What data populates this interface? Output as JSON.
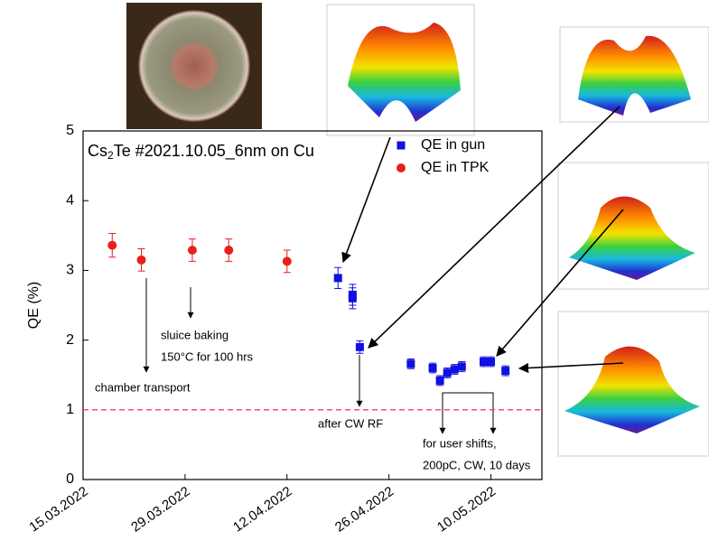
{
  "chart_data": {
    "type": "scatter",
    "title_parts": [
      "Cs",
      "2",
      "Te #2021.10.05_6nm on Cu"
    ],
    "y_label": "QE (%)",
    "xlim": [
      "2022-03-15",
      "2022-05-17"
    ],
    "xticks": [
      {
        "value": "2022-03-15",
        "label": "15.03.2022"
      },
      {
        "value": "2022-03-29",
        "label": "29.03.2022"
      },
      {
        "value": "2022-04-12",
        "label": "12.04.2022"
      },
      {
        "value": "2022-04-26",
        "label": "26.04.2022"
      },
      {
        "value": "2022-05-10",
        "label": "10.05.2022"
      }
    ],
    "ylim": [
      0,
      5
    ],
    "yticks": [
      0,
      1,
      2,
      3,
      4,
      5
    ],
    "legend": "upper right",
    "series": [
      {
        "name": "QE in gun",
        "color": "#1010e0",
        "marker": "square",
        "x": [
          "2022-04-19",
          "2022-04-21",
          "2022-04-21",
          "2022-04-22",
          "2022-04-29",
          "2022-05-02",
          "2022-05-03",
          "2022-05-04",
          "2022-05-05",
          "2022-05-06",
          "2022-05-09",
          "2022-05-10",
          "2022-05-12"
        ],
        "values": [
          2.89,
          2.65,
          2.6,
          1.9,
          1.66,
          1.6,
          1.42,
          1.53,
          1.58,
          1.62,
          1.69,
          1.69,
          1.56
        ],
        "errors": [
          0.15,
          0.15,
          0.15,
          0.09,
          0.07,
          0.07,
          0.07,
          0.07,
          0.07,
          0.07,
          0.07,
          0.07,
          0.07
        ]
      },
      {
        "name": "QE in TPK",
        "color": "#e8201a",
        "marker": "circle",
        "x": [
          "2022-03-19",
          "2022-03-23",
          "2022-03-30",
          "2022-04-04",
          "2022-04-12"
        ],
        "values": [
          3.36,
          3.15,
          3.29,
          3.29,
          3.13
        ],
        "errors": [
          0.17,
          0.16,
          0.16,
          0.16,
          0.16
        ]
      }
    ],
    "hline": {
      "value": 1,
      "color": "#ff3fa0"
    },
    "annotations": [
      "chamber transport",
      "sluice baking",
      "150°C for 100 hrs",
      "after CW RF",
      "for user shifts,",
      "200pC, CW, 10 days"
    ]
  }
}
